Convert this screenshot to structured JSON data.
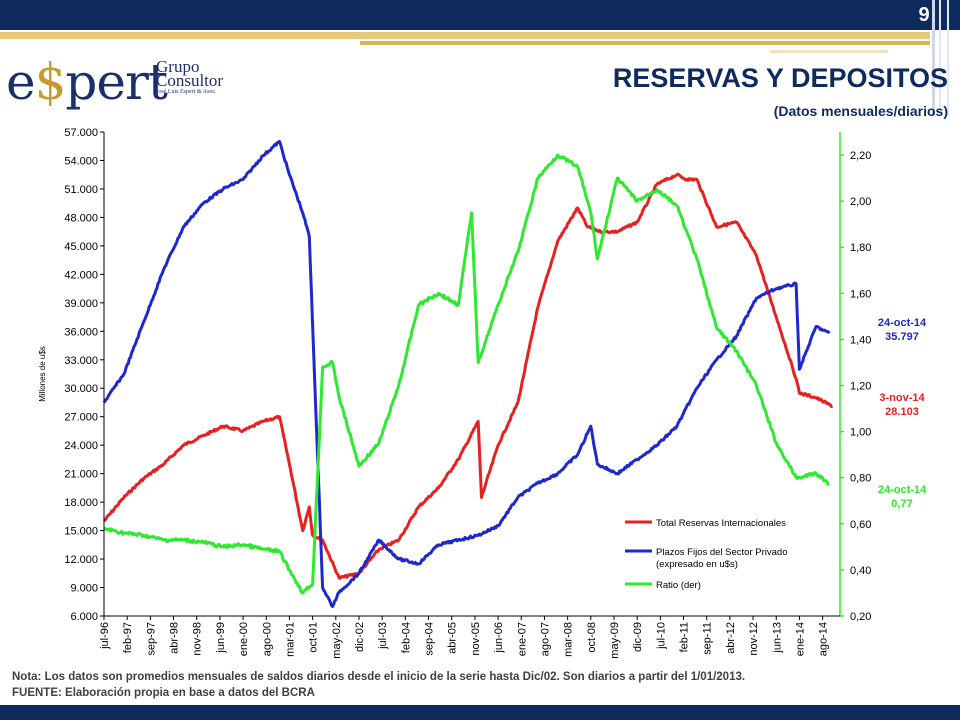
{
  "page_number": "9",
  "logo": {
    "main": "espert",
    "line1": "Grupo",
    "line2": "Consultor",
    "line3": "José Luis Espert & Asoc."
  },
  "title": "RESERVAS Y DEPOSITOS",
  "subtitle": "(Datos mensuales/diarios)",
  "colors": {
    "navy": "#0f2a5e",
    "gold": "#e6c97a",
    "reserves": "#e8201f",
    "deposits": "#1f28cc",
    "ratio": "#2eea2e"
  },
  "note": "Nota: Los datos son promedios mensuales de saldos diarios desde el inicio de la serie hasta Dic/02. Son diarios a partir del 1/01/2013.",
  "source": "FUENTE: Elaboración propia en base a datos del BCRA",
  "chart_data": {
    "type": "line",
    "ylabel": "Millones de u$s",
    "ylim": [
      6000,
      57000
    ],
    "y_ticks": [
      "57.000",
      "54.000",
      "51.000",
      "48.000",
      "45.000",
      "42.000",
      "39.000",
      "36.000",
      "33.000",
      "30.000",
      "27.000",
      "24.000",
      "21.000",
      "18.000",
      "15.000",
      "12.000",
      "9.000",
      "6.000"
    ],
    "y2lim": [
      0.2,
      2.3
    ],
    "y2_ticks": [
      "2,20",
      "2,00",
      "1,80",
      "1,60",
      "1,40",
      "1,20",
      "1,00",
      "0,80",
      "0,60",
      "0,40",
      "0,20"
    ],
    "x_ticks": [
      "jul-96",
      "feb-97",
      "sep-97",
      "abr-98",
      "nov-98",
      "jun-99",
      "ene-00",
      "ago-00",
      "mar-01",
      "oct-01",
      "may-02",
      "dic-02",
      "jul-03",
      "feb-04",
      "sep-04",
      "abr-05",
      "nov-05",
      "jun-06",
      "ene-07",
      "ago-07",
      "mar-08",
      "oct-08",
      "may-09",
      "dic-09",
      "jul-10",
      "feb-11",
      "sep-11",
      "abr-12",
      "nov-12",
      "jun-13",
      "ene-14",
      "ago-14"
    ],
    "legend_position": "bottom-right",
    "series": [
      {
        "name": "Total Reservas Internacionales",
        "axis": "left",
        "x": [
          "1996-07",
          "1997-01",
          "1997-07",
          "1998-01",
          "1998-07",
          "1999-01",
          "1999-07",
          "2000-01",
          "2000-07",
          "2000-12",
          "2001-03",
          "2001-07",
          "2001-09",
          "2001-10",
          "2002-01",
          "2002-06",
          "2002-12",
          "2003-06",
          "2003-12",
          "2004-06",
          "2004-12",
          "2005-06",
          "2005-12",
          "2006-01",
          "2006-06",
          "2006-12",
          "2007-06",
          "2007-12",
          "2008-06",
          "2008-09",
          "2009-01",
          "2009-06",
          "2009-12",
          "2010-06",
          "2010-12",
          "2011-03",
          "2011-06",
          "2011-12",
          "2012-06",
          "2012-12",
          "2013-06",
          "2013-12",
          "2014-01",
          "2014-06",
          "2014-11"
        ],
        "values": [
          16000,
          18500,
          20500,
          22000,
          24000,
          25000,
          26000,
          25500,
          26500,
          27000,
          22000,
          15000,
          17500,
          14500,
          14000,
          10000,
          10500,
          13000,
          14000,
          17500,
          19500,
          22500,
          26500,
          18500,
          24000,
          28500,
          38500,
          45500,
          49000,
          47000,
          46500,
          46500,
          47500,
          51500,
          52500,
          52000,
          52000,
          47000,
          47500,
          44000,
          37500,
          31000,
          29500,
          29000,
          28103
        ]
      },
      {
        "name": "Plazos Fijos del Sector Privado (expresado en u$s)",
        "axis": "left",
        "x": [
          "1996-07",
          "1997-01",
          "1997-07",
          "1998-01",
          "1998-07",
          "1999-01",
          "1999-07",
          "2000-01",
          "2000-07",
          "2000-12",
          "2001-03",
          "2001-07",
          "2001-09",
          "2002-01",
          "2002-04",
          "2002-06",
          "2002-12",
          "2003-06",
          "2003-12",
          "2004-06",
          "2004-12",
          "2005-06",
          "2005-12",
          "2006-06",
          "2006-12",
          "2007-06",
          "2007-12",
          "2008-06",
          "2008-10",
          "2008-12",
          "2009-06",
          "2009-12",
          "2010-06",
          "2010-12",
          "2011-06",
          "2011-12",
          "2012-06",
          "2012-12",
          "2013-06",
          "2013-12",
          "2014-01",
          "2014-06",
          "2014-10"
        ],
        "values": [
          28500,
          31500,
          37000,
          42500,
          47000,
          49500,
          51000,
          52000,
          54500,
          56000,
          52500,
          48500,
          46000,
          9000,
          7000,
          8500,
          10500,
          14000,
          12000,
          11500,
          13500,
          14000,
          14500,
          15500,
          18500,
          20000,
          21000,
          23000,
          26000,
          22000,
          21000,
          22500,
          24000,
          26000,
          30000,
          33000,
          35500,
          39500,
          40500,
          41000,
          32000,
          36500,
          35797
        ]
      },
      {
        "name": "Ratio (der)",
        "axis": "right",
        "x": [
          "1996-07",
          "1997-01",
          "1997-07",
          "1998-01",
          "1998-07",
          "1999-01",
          "1999-07",
          "2000-01",
          "2000-07",
          "2000-12",
          "2001-03",
          "2001-07",
          "2001-10",
          "2002-01",
          "2002-04",
          "2002-06",
          "2002-12",
          "2003-06",
          "2003-12",
          "2004-06",
          "2004-12",
          "2005-06",
          "2005-10",
          "2005-12",
          "2006-06",
          "2006-12",
          "2007-06",
          "2007-12",
          "2008-06",
          "2008-10",
          "2008-12",
          "2009-06",
          "2009-12",
          "2010-06",
          "2010-12",
          "2011-06",
          "2011-12",
          "2012-06",
          "2012-12",
          "2013-06",
          "2013-12",
          "2014-01",
          "2014-06",
          "2014-10"
        ],
        "values": [
          0.58,
          0.56,
          0.55,
          0.53,
          0.53,
          0.52,
          0.5,
          0.51,
          0.49,
          0.48,
          0.4,
          0.3,
          0.34,
          1.28,
          1.3,
          1.15,
          0.85,
          0.95,
          1.2,
          1.55,
          1.6,
          1.55,
          1.95,
          1.3,
          1.55,
          1.78,
          2.1,
          2.2,
          2.15,
          1.95,
          1.75,
          2.1,
          2.0,
          2.05,
          1.98,
          1.75,
          1.45,
          1.35,
          1.2,
          0.95,
          0.8,
          0.8,
          0.82,
          0.77
        ]
      }
    ],
    "annotations": [
      {
        "date": "24-oct-14",
        "value": "35.797",
        "color": "#1f28cc"
      },
      {
        "date": "3-nov-14",
        "value": "28.103",
        "color": "#e8201f"
      },
      {
        "date": "24-oct-14",
        "value": "0,77",
        "color": "#2eea2e"
      }
    ]
  }
}
